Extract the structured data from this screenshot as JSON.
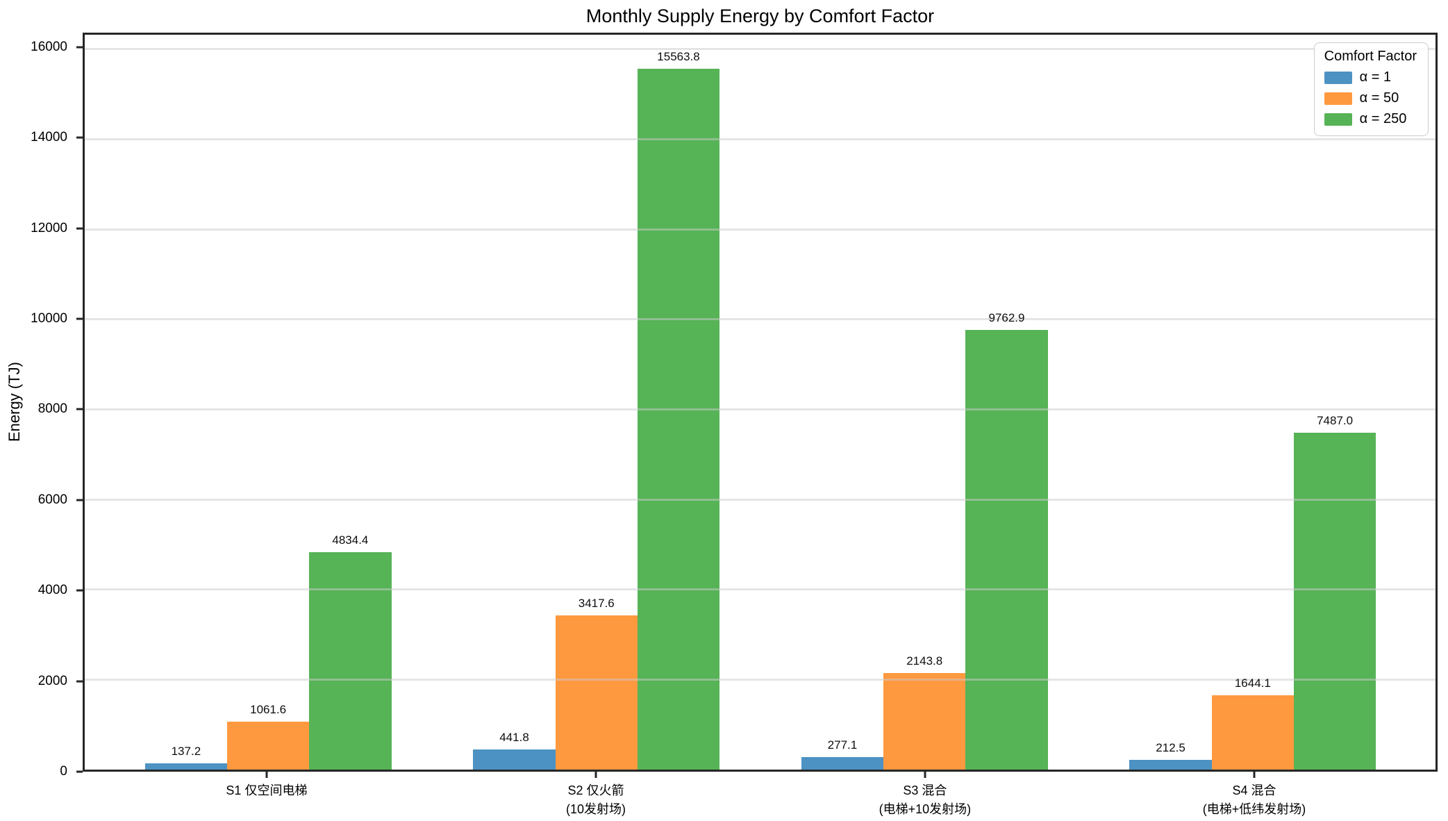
{
  "chart_data": {
    "type": "bar",
    "title": "Monthly Supply Energy by Comfort Factor",
    "ylabel": "Energy (TJ)",
    "ylim": [
      0,
      16320
    ],
    "yticks": [
      0,
      2000,
      4000,
      6000,
      8000,
      10000,
      12000,
      14000,
      16000
    ],
    "grid": "horizontal-light",
    "legend": {
      "title": "Comfort Factor",
      "position": "upper-right"
    },
    "categories": [
      {
        "lines": [
          "S1 仅空间电梯"
        ]
      },
      {
        "lines": [
          "S2 仅火箭",
          "(10发射场)"
        ]
      },
      {
        "lines": [
          "S3 混合",
          "(电梯+10发射场)"
        ]
      },
      {
        "lines": [
          "S4 混合",
          "(电梯+低纬发射场)"
        ]
      }
    ],
    "series": [
      {
        "name": "α = 1",
        "color": "#4c92c3",
        "values": [
          137.2,
          441.8,
          277.1,
          212.5
        ],
        "value_labels": [
          "137.2",
          "441.8",
          "277.1",
          "212.5"
        ]
      },
      {
        "name": "α = 50",
        "color": "#ff993f",
        "values": [
          1061.6,
          3417.6,
          2143.8,
          1644.1
        ],
        "value_labels": [
          "1061.6",
          "3417.6",
          "2143.8",
          "1644.1"
        ]
      },
      {
        "name": "α = 250",
        "color": "#56b356",
        "values": [
          4834.4,
          15563.8,
          9762.9,
          7487.0
        ],
        "value_labels": [
          "4834.4",
          "15563.8",
          "9762.9",
          "7487.0"
        ]
      }
    ]
  }
}
